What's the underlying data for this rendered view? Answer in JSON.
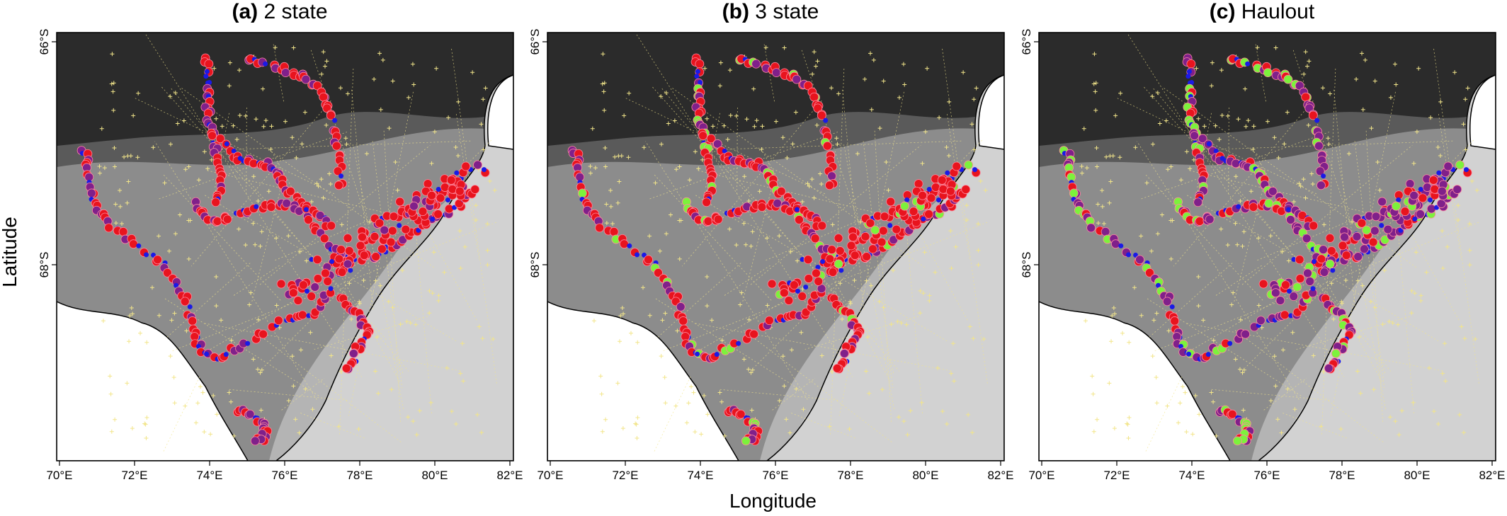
{
  "figure": {
    "xlabel": "Longitude",
    "ylabel": "Latitude"
  },
  "panels": [
    {
      "letter": "(a)",
      "title": "2 state"
    },
    {
      "letter": "(b)",
      "title": "3 state"
    },
    {
      "letter": "(c)",
      "title": "Haulout"
    }
  ],
  "x_ticks": [
    "70°E",
    "72°E",
    "74°E",
    "76°E",
    "78°E",
    "80°E",
    "82°E"
  ],
  "y_ticks": [
    "66°S",
    "68°S"
  ],
  "colors": {
    "land": "#ffffff",
    "sea_deep": "#2b2b2b",
    "sea_mid": "#5a5a5a",
    "sea_shelf": "#8c8c8c",
    "sea_shallow": "#b4b4b4",
    "sea_coastal": "#d2d2d2",
    "state_red": "#e8141e",
    "state_purple": "#80208a",
    "state_blue": "#1a1ae6",
    "state_green": "#7cf23c",
    "track_points": "#f2e58a"
  }
}
